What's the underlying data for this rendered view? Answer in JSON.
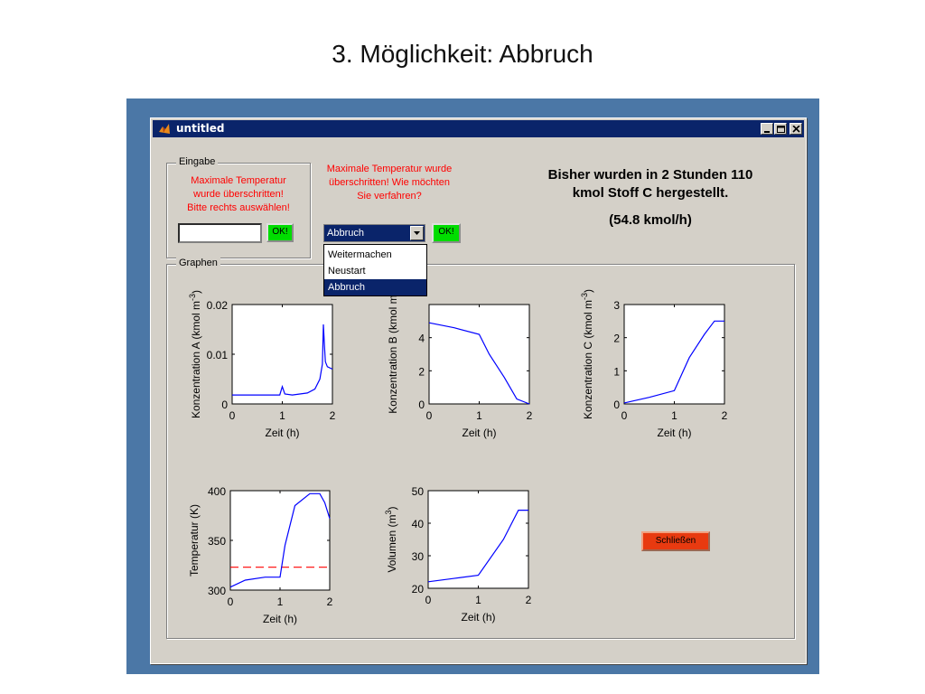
{
  "slide_title": "3. Möglichkeit: Abbruch",
  "window": {
    "title": "untitled"
  },
  "eingabe": {
    "legend": "Eingabe",
    "message_lines": [
      "Maximale Temperatur",
      "wurde überschritten!",
      "Bitte rechts auswählen!"
    ],
    "input_value": "",
    "ok_label": "OK!"
  },
  "prompt": {
    "message_lines": [
      "Maximale Temperatur wurde",
      "überschritten! Wie möchten",
      "Sie verfahren?"
    ],
    "selected": "Abbruch",
    "options": [
      "Weitermachen",
      "Neustart",
      "Abbruch"
    ],
    "ok_label": "OK!"
  },
  "info": {
    "line1": "Bisher wurden in 2 Stunden 110",
    "line2": "kmol Stoff C hergestellt.",
    "line3": "(54.8 kmol/h)"
  },
  "graphen": {
    "legend": "Graphen"
  },
  "close_label": "Schließen",
  "colors": {
    "line": "#0000ff",
    "limit": "#ff0000",
    "ok": "#00dd00",
    "close": "#e83a10",
    "titlebar": "#0a246a"
  },
  "chart_data": [
    {
      "type": "line",
      "xlabel": "Zeit (h)",
      "ylabel": "Konzentration A (kmol m",
      "ylabel_sup": "-3",
      "ylabel_end": ")",
      "xlim": [
        0,
        2
      ],
      "ylim": [
        0,
        0.02
      ],
      "xticks": [
        "0",
        "1",
        "2"
      ],
      "yticks": [
        "0",
        "0.01",
        "0.02"
      ],
      "x": [
        0,
        0.1,
        0.5,
        0.95,
        1.0,
        1.05,
        1.2,
        1.5,
        1.65,
        1.75,
        1.8,
        1.82,
        1.84,
        1.86,
        1.9,
        2.0
      ],
      "y": [
        0.0018,
        0.0018,
        0.0018,
        0.0018,
        0.0035,
        0.002,
        0.0018,
        0.0022,
        0.003,
        0.005,
        0.008,
        0.016,
        0.012,
        0.0085,
        0.0075,
        0.007
      ]
    },
    {
      "type": "line",
      "xlabel": "Zeit (h)",
      "ylabel": "Konzentration B (kmol m",
      "ylabel_sup": "",
      "ylabel_end": "",
      "xlim": [
        0,
        2
      ],
      "ylim": [
        0,
        6
      ],
      "xticks": [
        "0",
        "1",
        "2"
      ],
      "yticks": [
        "0",
        "2",
        "4"
      ],
      "x": [
        0,
        0.5,
        1.0,
        1.2,
        1.5,
        1.75,
        2.0
      ],
      "y": [
        4.9,
        4.6,
        4.2,
        3.0,
        1.6,
        0.3,
        0
      ]
    },
    {
      "type": "line",
      "xlabel": "Zeit (h)",
      "ylabel": "Konzentration C (kmol m",
      "ylabel_sup": "-3",
      "ylabel_end": ")",
      "xlim": [
        0,
        2
      ],
      "ylim": [
        0,
        3
      ],
      "xticks": [
        "0",
        "1",
        "2"
      ],
      "yticks": [
        "0",
        "1",
        "2",
        "3"
      ],
      "x": [
        0,
        0.5,
        1.0,
        1.3,
        1.6,
        1.8,
        2.0
      ],
      "y": [
        0.03,
        0.2,
        0.4,
        1.4,
        2.1,
        2.5,
        2.5
      ]
    },
    {
      "type": "line",
      "xlabel": "Zeit (h)",
      "ylabel": "Temperatur (K)",
      "ylabel_sup": "",
      "ylabel_end": "",
      "xlim": [
        0,
        2
      ],
      "ylim": [
        300,
        400
      ],
      "xticks": [
        "0",
        "1",
        "2"
      ],
      "yticks": [
        "300",
        "350",
        "400"
      ],
      "x": [
        0,
        0.3,
        0.7,
        1.0,
        1.1,
        1.3,
        1.6,
        1.8,
        1.9,
        2.0
      ],
      "y": [
        303,
        310,
        313,
        313,
        345,
        385,
        397,
        397,
        388,
        372
      ],
      "limit": 323
    },
    {
      "type": "line",
      "xlabel": "Zeit (h)",
      "ylabel": "Volumen (m",
      "ylabel_sup": "3",
      "ylabel_end": ")",
      "xlim": [
        0,
        2
      ],
      "ylim": [
        20,
        50
      ],
      "xticks": [
        "0",
        "1",
        "2"
      ],
      "yticks": [
        "20",
        "30",
        "40",
        "50"
      ],
      "x": [
        0,
        0.5,
        1.0,
        1.5,
        1.8,
        2.0
      ],
      "y": [
        22,
        23,
        24,
        35,
        44,
        44
      ]
    }
  ]
}
